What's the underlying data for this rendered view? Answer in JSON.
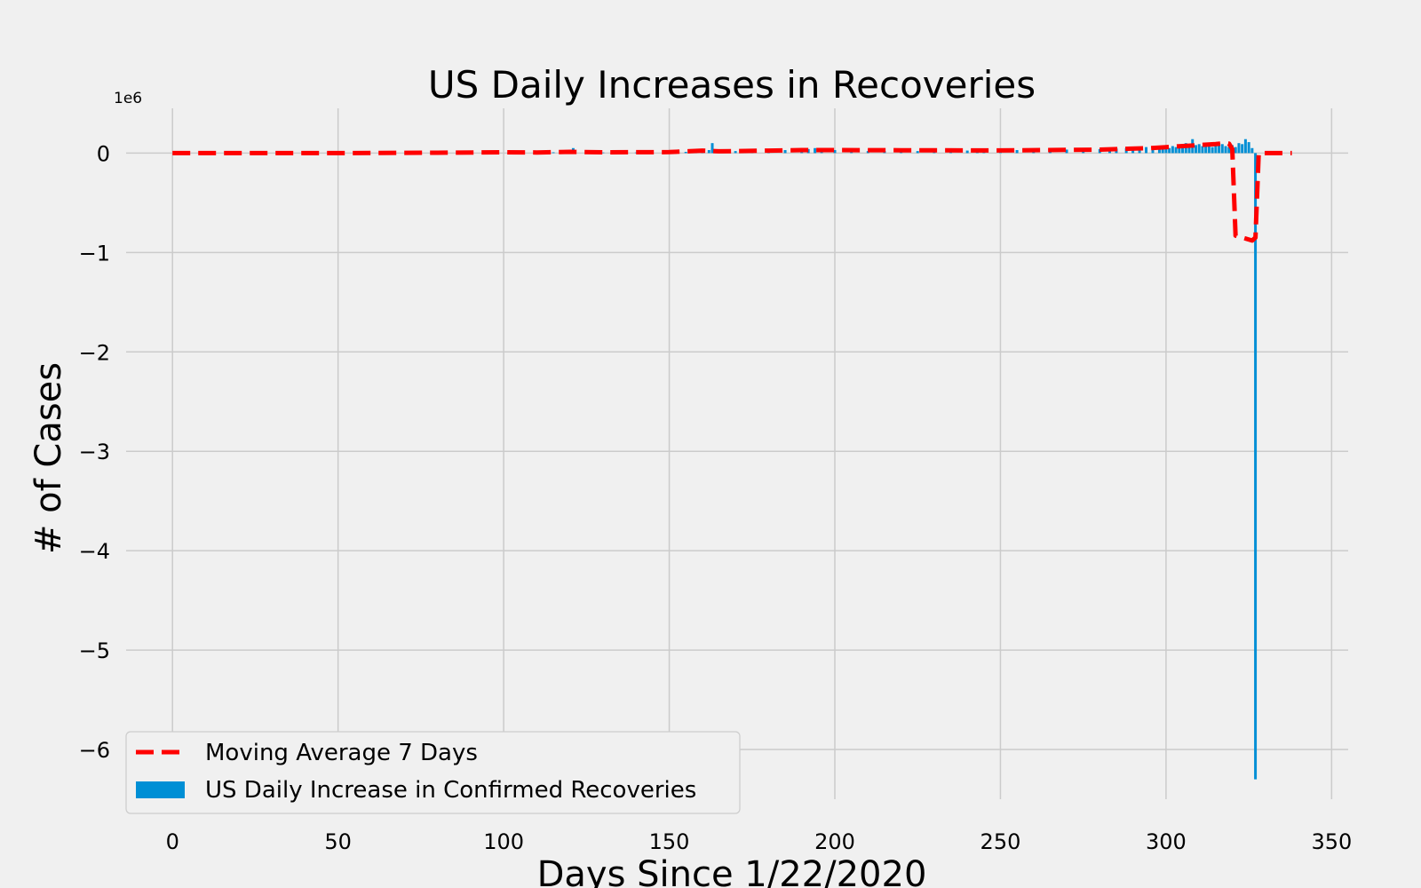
{
  "chart_data": {
    "type": "bar",
    "title": "US Daily Increases in Recoveries",
    "xlabel": "Days Since 1/22/2020",
    "ylabel": "# of Cases",
    "y_offset_label": "1e6",
    "xlim": [
      -14,
      355
    ],
    "ylim": [
      -6.5,
      0.45
    ],
    "y_unit_multiplier": 1000000,
    "x_ticks": [
      0,
      50,
      100,
      150,
      200,
      250,
      300,
      350
    ],
    "x_tick_labels": [
      "0",
      "50",
      "100",
      "150",
      "200",
      "250",
      "300",
      "350"
    ],
    "y_ticks": [
      0,
      -1,
      -2,
      -3,
      -4,
      -5,
      -6
    ],
    "y_tick_labels": [
      "0",
      "−1",
      "−2",
      "−3",
      "−4",
      "−5",
      "−6"
    ],
    "grid": true,
    "legend_position": "lower-left",
    "series": [
      {
        "name": "US Daily Increase in Confirmed Recoveries",
        "kind": "bar",
        "color": "#008fd5",
        "x": [
          110,
          115,
          120,
          121,
          125,
          130,
          140,
          150,
          155,
          158,
          160,
          162,
          163,
          164,
          165,
          170,
          175,
          180,
          185,
          190,
          192,
          194,
          196,
          200,
          205,
          210,
          215,
          220,
          225,
          230,
          235,
          240,
          243,
          245,
          250,
          255,
          260,
          265,
          270,
          275,
          280,
          283,
          285,
          288,
          290,
          292,
          294,
          296,
          298,
          299,
          300,
          301,
          302,
          303,
          304,
          305,
          306,
          307,
          308,
          309,
          310,
          311,
          312,
          313,
          314,
          315,
          316,
          317,
          318,
          319,
          320,
          321,
          322,
          323,
          324,
          325,
          326,
          327
        ],
        "values": [
          0.004,
          0.008,
          0.02,
          0.05,
          0.01,
          0.006,
          0.006,
          0.008,
          0.012,
          0.02,
          0.025,
          0.03,
          0.1,
          0.03,
          0.02,
          0.02,
          0.025,
          0.025,
          0.03,
          0.035,
          0.04,
          0.05,
          0.035,
          0.03,
          0.025,
          0.02,
          0.02,
          0.02,
          0.02,
          0.02,
          0.02,
          0.025,
          0.04,
          0.03,
          0.03,
          0.03,
          0.03,
          0.035,
          0.035,
          0.04,
          0.04,
          0.05,
          0.045,
          0.05,
          0.05,
          0.055,
          0.06,
          0.05,
          0.06,
          0.07,
          0.06,
          0.05,
          0.07,
          0.06,
          0.05,
          0.07,
          0.1,
          0.08,
          0.14,
          0.08,
          0.09,
          0.07,
          0.08,
          0.09,
          0.06,
          0.08,
          0.1,
          0.09,
          0.07,
          0.06,
          0.08,
          0.06,
          0.1,
          0.09,
          0.14,
          0.11,
          0.05,
          -6.3
        ]
      },
      {
        "name": "Moving Average 7 Days",
        "kind": "line",
        "style": "dashed",
        "color": "#ff0000",
        "x": [
          0,
          50,
          80,
          100,
          110,
          120,
          130,
          150,
          160,
          165,
          180,
          190,
          200,
          220,
          250,
          280,
          295,
          300,
          305,
          310,
          315,
          318,
          319,
          320,
          321,
          326,
          327,
          328,
          338
        ],
        "values": [
          0,
          0,
          0.003,
          0.008,
          0.006,
          0.012,
          0.008,
          0.01,
          0.025,
          0.018,
          0.025,
          0.03,
          0.03,
          0.028,
          0.027,
          0.035,
          0.05,
          0.06,
          0.07,
          0.08,
          0.09,
          0.1,
          0.095,
          0.04,
          -0.83,
          -0.88,
          -0.85,
          0,
          0
        ]
      }
    ]
  }
}
